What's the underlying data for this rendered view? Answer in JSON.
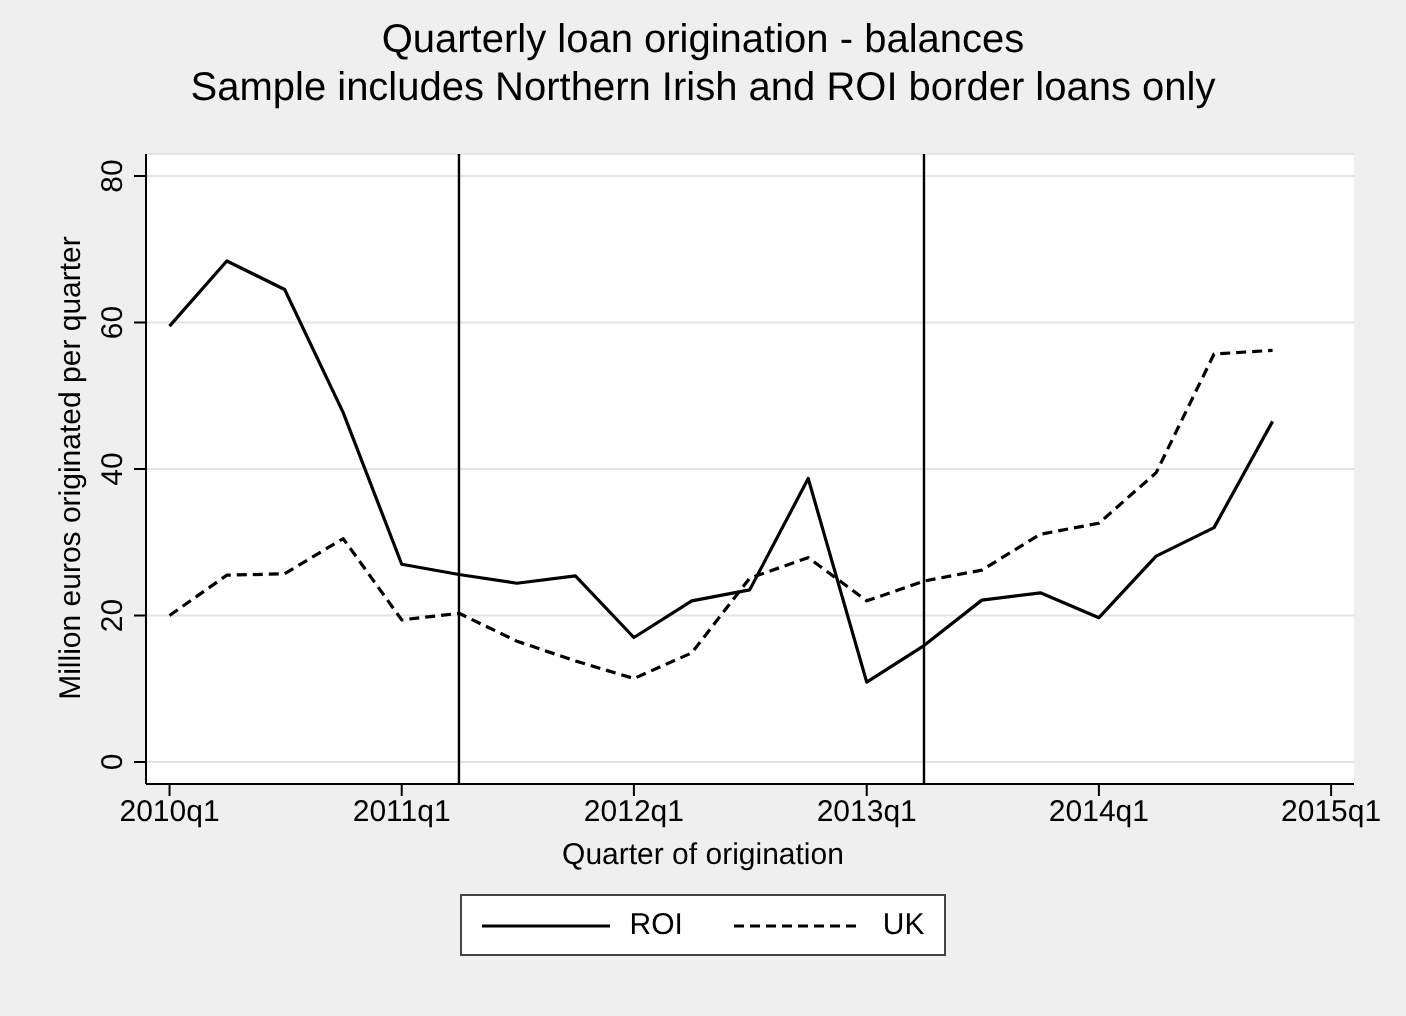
{
  "chart_data": {
    "type": "line",
    "title": "Quarterly loan origination - balances",
    "subtitle": "Sample includes Northern Irish and ROI border loans only",
    "xlabel": "Quarter of origination",
    "ylabel": "Million euros originated per quarter",
    "x": [
      "2010-01",
      "2010-04",
      "2010-07",
      "2010-10",
      "2011-01",
      "2011-04",
      "2011-07",
      "2011-10",
      "2012-01",
      "2012-04",
      "2012-07",
      "2012-10",
      "2013-01",
      "2013-04",
      "2013-07",
      "2013-10",
      "2014-01",
      "2014-04",
      "2014-07",
      "2014-10"
    ],
    "series": [
      {
        "name": "ROI",
        "color": "#000000",
        "line_style": "solid",
        "values": [
          59.5,
          68.4,
          64.5,
          47.7,
          27.0,
          25.6,
          24.4,
          25.4,
          17.0,
          22.0,
          23.5,
          38.7,
          10.9,
          15.9,
          22.1,
          23.1,
          19.7,
          28.1,
          32.0,
          46.5
        ]
      },
      {
        "name": "UK",
        "color": "#000000",
        "line_style": "dashed",
        "values": [
          20.0,
          25.5,
          25.7,
          30.5,
          19.4,
          20.3,
          16.5,
          13.8,
          11.4,
          14.9,
          25.1,
          27.9,
          22.0,
          24.7,
          26.2,
          31.1,
          32.6,
          39.5,
          55.7,
          56.2
        ]
      }
    ],
    "xlim": [
      "2009-11-25",
      "2015-02-06"
    ],
    "xticks": [
      {
        "value": "2010-01",
        "label": "2010q1"
      },
      {
        "value": "2011-01",
        "label": "2011q1"
      },
      {
        "value": "2012-01",
        "label": "2012q1"
      },
      {
        "value": "2013-01",
        "label": "2013q1"
      },
      {
        "value": "2014-01",
        "label": "2014q1"
      },
      {
        "value": "2015-01",
        "label": "2015q1"
      }
    ],
    "ylim": [
      -3,
      83
    ],
    "yticks": [
      0,
      20,
      40,
      60,
      80
    ],
    "ref_lines": [
      {
        "axis": "x",
        "value": "2011-04",
        "color": "#000000"
      },
      {
        "axis": "x",
        "value": "2013-04",
        "color": "#000000"
      }
    ],
    "grid": "y",
    "legend": "bottom",
    "marker": "none"
  }
}
